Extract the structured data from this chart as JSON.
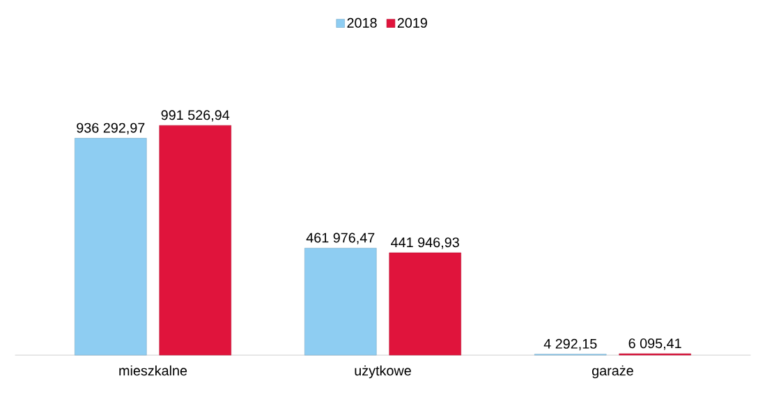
{
  "chart_data": {
    "type": "bar",
    "categories": [
      "mieszkalne",
      "użytkowe",
      "garaże"
    ],
    "legend": "top",
    "series": [
      {
        "name": "2018",
        "color": "#8ecdf2",
        "values": [
          936292.97,
          461976.47,
          4292.15
        ],
        "value_labels": [
          "936 292,97",
          "461 976,47",
          "4 292,15"
        ]
      },
      {
        "name": "2019",
        "color": "#e0143c",
        "values": [
          991526.94,
          441946.93,
          6095.41
        ],
        "value_labels": [
          "991 526,94",
          "441 946,93",
          "6 095,41"
        ]
      }
    ]
  }
}
